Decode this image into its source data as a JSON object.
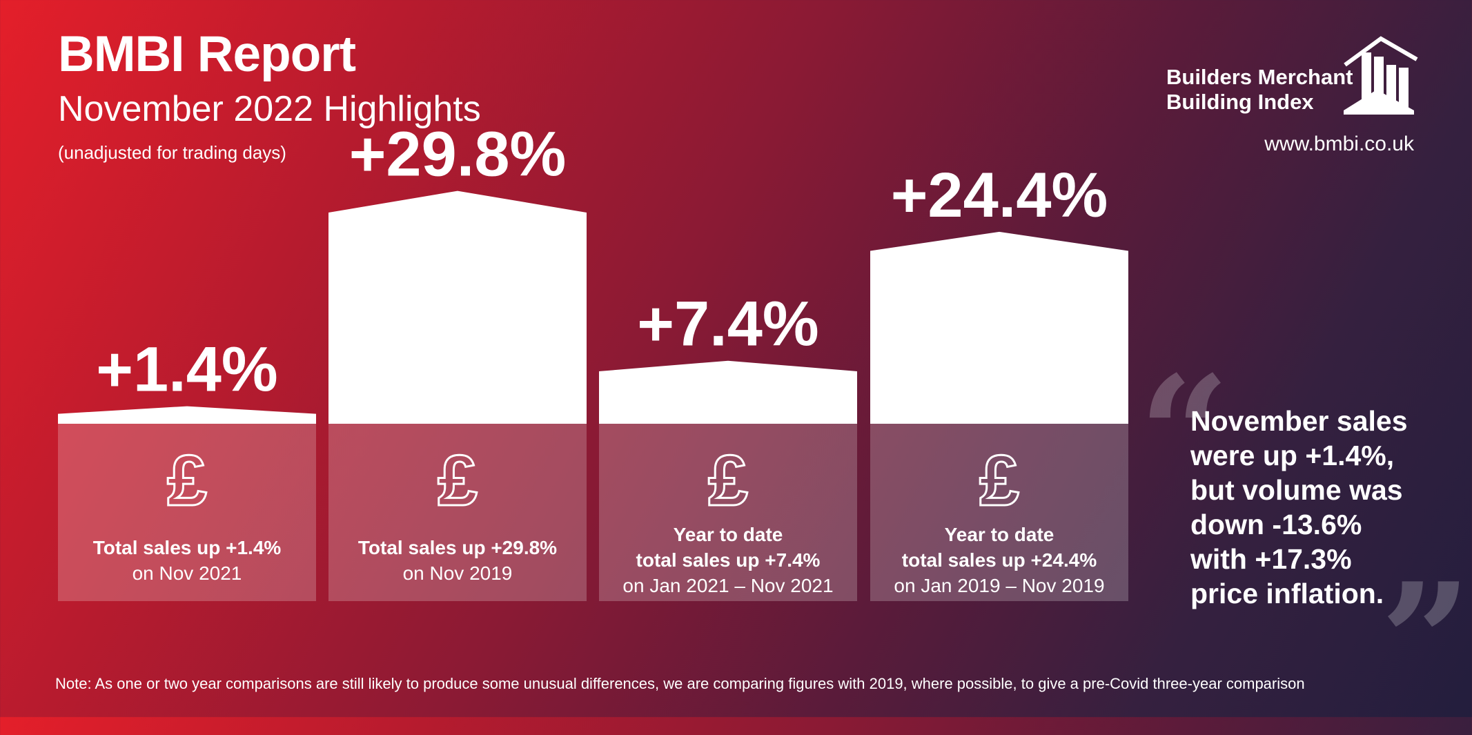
{
  "header": {
    "title": "BMBI Report",
    "subtitle": "November 2022 Highlights",
    "note": "(unadjusted for trading days)"
  },
  "logo": {
    "line1": "Builders Merchant",
    "line2": "Building Index",
    "icon": "house-bar-chart-icon"
  },
  "url": "www.bmbi.co.uk",
  "chart_data": {
    "type": "bar",
    "unit": "%",
    "categories": [
      "Nov 2022 vs Nov 2021",
      "Nov 2022 vs Nov 2019",
      "YTD vs Jan–Nov 2021",
      "YTD vs Jan–Nov 2019"
    ],
    "values": [
      1.4,
      29.8,
      7.4,
      24.4
    ],
    "value_labels": [
      "+1.4%",
      "+29.8%",
      "+7.4%",
      "+24.4%"
    ],
    "bars": [
      {
        "icon": "pound-sign-icon",
        "line1": "",
        "line2": "Total sales up +1.4%",
        "line3": "on Nov 2021"
      },
      {
        "icon": "pound-sign-icon",
        "line1": "",
        "line2": "Total sales up +29.8%",
        "line3": "on Nov 2019"
      },
      {
        "icon": "pound-sign-icon",
        "line1": "Year to date",
        "line2": "total sales up +7.4%",
        "line3": "on Jan 2021 – Nov 2021"
      },
      {
        "icon": "pound-sign-icon",
        "line1": "Year to date",
        "line2": "total sales up +24.4%",
        "line3": "on Jan 2019 – Nov 2019"
      }
    ]
  },
  "quote": {
    "lines": [
      "November sales",
      "were up +1.4%,",
      "but volume was",
      "down -13.6%",
      "with +17.3%",
      "price inflation."
    ]
  },
  "footnote": "Note: As one or two year comparisons are still likely to produce some unusual differences, we are comparing figures with 2019, where possible, to give a pre-Covid three-year comparison",
  "colors": {
    "background_start": "#e41f2a",
    "background_end": "#231e3d",
    "bar": "#ffffff",
    "panel": "rgba(255,255,255,0.22)"
  }
}
